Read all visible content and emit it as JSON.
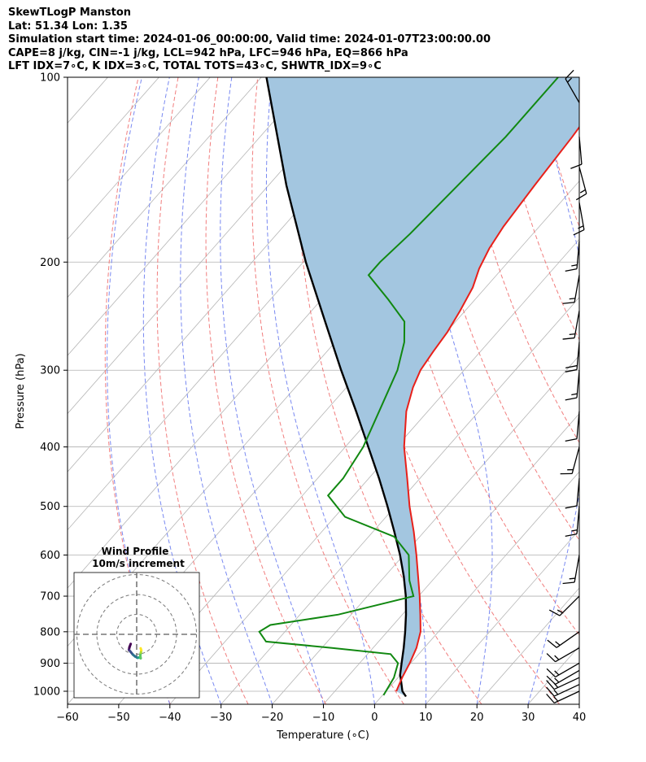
{
  "header": {
    "line1": "SkewTLogP Manston",
    "line2": "Lat: 51.34   Lon: 1.35",
    "line3": "Simulation start time: 2024-01-06_00:00:00, Valid time: 2024-01-07T23:00:00.00",
    "line4": "CAPE=8 j/kg, CIN=-1 j/kg, LCL=942 hPa, LFC=946 hPa, EQ=866 hPa",
    "line5": "LFT IDX=7∘C, K IDX=3∘C, TOTAL TOTS=43∘C, SHWTR_IDX=9∘C"
  },
  "chart_data": {
    "type": "skew-t",
    "xlabel": "Temperature (∘C)",
    "ylabel": "Pressure (hPa)",
    "xlim": [
      -60,
      40
    ],
    "ylim": [
      1050,
      100
    ],
    "x_ticks": [
      -60,
      -50,
      -40,
      -30,
      -20,
      -10,
      0,
      10,
      20,
      30,
      40
    ],
    "y_ticks": [
      1000,
      900,
      800,
      700,
      600,
      500,
      400,
      300,
      200,
      100
    ],
    "log_pressure_axis": true,
    "grid": true,
    "colors": {
      "temperature": "#e8201a",
      "dewpoint": "#118811",
      "parcel": "#000000",
      "cape_fill": "#a3c6e0",
      "dry_adiabats": "#f07070",
      "moist_adiabats": "#6a7cf0",
      "isotherms": "#b5b5b5"
    },
    "temperature": [
      {
        "p": 1000,
        "t": 2.0
      },
      {
        "p": 950,
        "t": 0.8
      },
      {
        "p": 900,
        "t": -0.2
      },
      {
        "p": 850,
        "t": -1.5
      },
      {
        "p": 800,
        "t": -3.5
      },
      {
        "p": 750,
        "t": -6.5
      },
      {
        "p": 700,
        "t": -9.8
      },
      {
        "p": 650,
        "t": -13.5
      },
      {
        "p": 600,
        "t": -17.5
      },
      {
        "p": 550,
        "t": -22.0
      },
      {
        "p": 500,
        "t": -27.2
      },
      {
        "p": 450,
        "t": -32.5
      },
      {
        "p": 400,
        "t": -38.5
      },
      {
        "p": 350,
        "t": -44.2
      },
      {
        "p": 320,
        "t": -47.0
      },
      {
        "p": 300,
        "t": -48.5
      },
      {
        "p": 280,
        "t": -49.2
      },
      {
        "p": 260,
        "t": -49.8
      },
      {
        "p": 240,
        "t": -51.0
      },
      {
        "p": 220,
        "t": -52.5
      },
      {
        "p": 205,
        "t": -54.5
      },
      {
        "p": 190,
        "t": -56.0
      },
      {
        "p": 175,
        "t": -57.0
      },
      {
        "p": 150,
        "t": -58.0
      },
      {
        "p": 125,
        "t": -59.0
      },
      {
        "p": 110,
        "t": -60.0
      },
      {
        "p": 100,
        "t": -61.0
      }
    ],
    "dewpoint": [
      {
        "p": 1015,
        "t": 0.2
      },
      {
        "p": 950,
        "t": -0.8
      },
      {
        "p": 900,
        "t": -2.5
      },
      {
        "p": 870,
        "t": -5.5
      },
      {
        "p": 850,
        "t": -18.0
      },
      {
        "p": 830,
        "t": -32.0
      },
      {
        "p": 800,
        "t": -35.0
      },
      {
        "p": 780,
        "t": -34.0
      },
      {
        "p": 750,
        "t": -22.5
      },
      {
        "p": 700,
        "t": -11.0
      },
      {
        "p": 660,
        "t": -14.5
      },
      {
        "p": 600,
        "t": -19.0
      },
      {
        "p": 560,
        "t": -25.0
      },
      {
        "p": 520,
        "t": -38.0
      },
      {
        "p": 480,
        "t": -45.0
      },
      {
        "p": 450,
        "t": -45.0
      },
      {
        "p": 400,
        "t": -46.5
      },
      {
        "p": 350,
        "t": -49.5
      },
      {
        "p": 300,
        "t": -53.0
      },
      {
        "p": 270,
        "t": -56.5
      },
      {
        "p": 250,
        "t": -60.0
      },
      {
        "p": 230,
        "t": -67.0
      },
      {
        "p": 210,
        "t": -75.0
      },
      {
        "p": 200,
        "t": -75.0
      },
      {
        "p": 180,
        "t": -74.0
      },
      {
        "p": 150,
        "t": -73.0
      },
      {
        "p": 125,
        "t": -72.0
      },
      {
        "p": 100,
        "t": -72.0
      }
    ],
    "parcel": [
      {
        "p": 1020,
        "t": 4.8
      },
      {
        "p": 1000,
        "t": 3.2
      },
      {
        "p": 950,
        "t": 0.5
      },
      {
        "p": 942,
        "t": 0.0
      },
      {
        "p": 900,
        "t": -1.8
      },
      {
        "p": 850,
        "t": -4.0
      },
      {
        "p": 800,
        "t": -6.5
      },
      {
        "p": 750,
        "t": -9.3
      },
      {
        "p": 700,
        "t": -12.5
      },
      {
        "p": 650,
        "t": -16.3
      },
      {
        "p": 600,
        "t": -20.7
      },
      {
        "p": 550,
        "t": -25.8
      },
      {
        "p": 500,
        "t": -31.5
      },
      {
        "p": 450,
        "t": -38.0
      },
      {
        "p": 400,
        "t": -45.5
      },
      {
        "p": 350,
        "t": -54.0
      },
      {
        "p": 300,
        "t": -64.0
      },
      {
        "p": 250,
        "t": -75.5
      },
      {
        "p": 200,
        "t": -89.5
      },
      {
        "p": 150,
        "t": -106.5
      },
      {
        "p": 100,
        "t": -129.0
      }
    ],
    "wind_barbs": [
      {
        "p": 1000,
        "speed_kt": 15,
        "dir_deg": 245
      },
      {
        "p": 975,
        "speed_kt": 15,
        "dir_deg": 245
      },
      {
        "p": 950,
        "speed_kt": 15,
        "dir_deg": 245
      },
      {
        "p": 925,
        "speed_kt": 15,
        "dir_deg": 240
      },
      {
        "p": 900,
        "speed_kt": 15,
        "dir_deg": 240
      },
      {
        "p": 850,
        "speed_kt": 15,
        "dir_deg": 240
      },
      {
        "p": 800,
        "speed_kt": 15,
        "dir_deg": 235
      },
      {
        "p": 700,
        "speed_kt": 15,
        "dir_deg": 225
      },
      {
        "p": 600,
        "speed_kt": 15,
        "dir_deg": 190
      },
      {
        "p": 500,
        "speed_kt": 15,
        "dir_deg": 185
      },
      {
        "p": 450,
        "speed_kt": 10,
        "dir_deg": 185
      },
      {
        "p": 400,
        "speed_kt": 15,
        "dir_deg": 195
      },
      {
        "p": 350,
        "speed_kt": 10,
        "dir_deg": 185
      },
      {
        "p": 300,
        "speed_kt": 15,
        "dir_deg": 185
      },
      {
        "p": 270,
        "speed_kt": 20,
        "dir_deg": 185
      },
      {
        "p": 240,
        "speed_kt": 15,
        "dir_deg": 190
      },
      {
        "p": 210,
        "speed_kt": 15,
        "dir_deg": 190
      },
      {
        "p": 185,
        "speed_kt": 15,
        "dir_deg": 185
      },
      {
        "p": 160,
        "speed_kt": 15,
        "dir_deg": 170
      },
      {
        "p": 140,
        "speed_kt": 15,
        "dir_deg": 165
      },
      {
        "p": 125,
        "speed_kt": 10,
        "dir_deg": 175
      },
      {
        "p": 110,
        "speed_kt": 15,
        "dir_deg": 330
      }
    ],
    "hodograph": {
      "title": "Wind Profile",
      "subtitle": "10m/s increment",
      "rings": [
        10,
        20,
        30
      ],
      "points": [
        {
          "u": -3.0,
          "v": -4.8
        },
        {
          "u": -3.6,
          "v": -6.4
        },
        {
          "u": -3.9,
          "v": -7.8
        },
        {
          "u": -3.2,
          "v": -8.6
        },
        {
          "u": -1.9,
          "v": -10.2
        },
        {
          "u": -0.8,
          "v": -11.1
        },
        {
          "u": 0.5,
          "v": -11.8
        },
        {
          "u": 1.3,
          "v": -11.6
        },
        {
          "u": 2.0,
          "v": -12.0
        },
        {
          "u": 1.8,
          "v": -10.6
        },
        {
          "u": 2.1,
          "v": -9.2
        },
        {
          "u": 2.3,
          "v": -8.0
        },
        {
          "u": 2.0,
          "v": -7.0
        }
      ]
    }
  }
}
